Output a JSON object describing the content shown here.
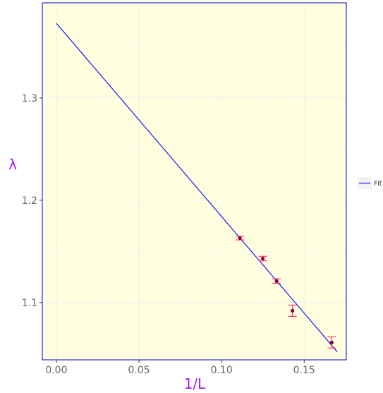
{
  "chart_data": {
    "type": "scatter",
    "xlabel": "1/L",
    "ylabel": "λ",
    "xlim": [
      -0.0085,
      0.1755
    ],
    "ylim": [
      1.044,
      1.393
    ],
    "x_ticks": [
      0.0,
      0.05,
      0.1,
      0.15
    ],
    "x_tick_labels": [
      "0.00",
      "0.05",
      "0.10",
      "0.15"
    ],
    "y_ticks": [
      1.1,
      1.2,
      1.3
    ],
    "y_tick_labels": [
      "1.1",
      "1.2",
      "1.3"
    ],
    "grid": true,
    "legend": {
      "position": "right",
      "entries": [
        "Fit"
      ]
    },
    "points": [
      {
        "x": 0.1111,
        "y": 1.163,
        "err": 0.0018
      },
      {
        "x": 0.125,
        "y": 1.143,
        "err": 0.0022
      },
      {
        "x": 0.1333,
        "y": 1.121,
        "err": 0.0022
      },
      {
        "x": 0.1429,
        "y": 1.092,
        "err": 0.0055
      },
      {
        "x": 0.1667,
        "y": 1.061,
        "err": 0.0055
      }
    ],
    "fit": {
      "name": "Fit",
      "intercept": 1.373,
      "slope": -1.889,
      "x_range": [
        0.0,
        0.17
      ]
    }
  },
  "colors": {
    "panel_bg": "#ffffe0",
    "panel_border": "#0000cd",
    "grid": "#f0f0ee",
    "fit_line": "#0000ff",
    "point": "#8b0040",
    "errorbar": "#ff3366",
    "axis_title": "#a020f0",
    "tick_label": "#666666",
    "legend_bg": "#f2f2f2"
  }
}
